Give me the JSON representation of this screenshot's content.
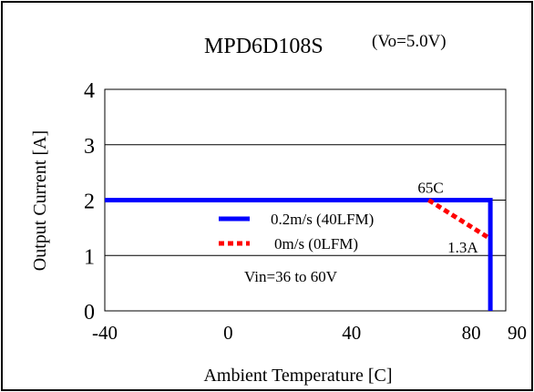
{
  "chart_data": {
    "type": "line",
    "title": "MPD6D108S",
    "subtitle": "(Vo=5.0V)",
    "xlabel": "Ambient Temperature [C]",
    "ylabel": "Output Current [A]",
    "xlim": [
      -40,
      90
    ],
    "ylim": [
      0,
      4
    ],
    "x_ticks": [
      {
        "value": -40,
        "label": "-40"
      },
      {
        "value": 0,
        "label": "0"
      },
      {
        "value": 40,
        "label": "40"
      },
      {
        "value": 80,
        "label": "80"
      },
      {
        "value": 90,
        "label": "90"
      }
    ],
    "y_ticks": [
      {
        "value": 0,
        "label": "0"
      },
      {
        "value": 1,
        "label": "1"
      },
      {
        "value": 2,
        "label": "2"
      },
      {
        "value": 3,
        "label": "3"
      },
      {
        "value": 4,
        "label": "4"
      }
    ],
    "grid": true,
    "legend_position": "center",
    "series": [
      {
        "name": "0.2m/s (40LFM)",
        "color": "#0000ff",
        "style": "solid",
        "x": [
          -40,
          85,
          85
        ],
        "y": [
          2,
          2,
          0
        ]
      },
      {
        "name": "0m/s (0LFM)",
        "color": "#ff0000",
        "style": "dotted",
        "x": [
          65,
          85
        ],
        "y": [
          2,
          1.3
        ]
      }
    ],
    "annotations": [
      {
        "text": "65C",
        "x": 65,
        "y": 2
      },
      {
        "text": "1.3A",
        "x": 85,
        "y": 1.3
      },
      {
        "text": "Vin=36 to 60V",
        "x": 15,
        "y": 0.6
      }
    ]
  }
}
